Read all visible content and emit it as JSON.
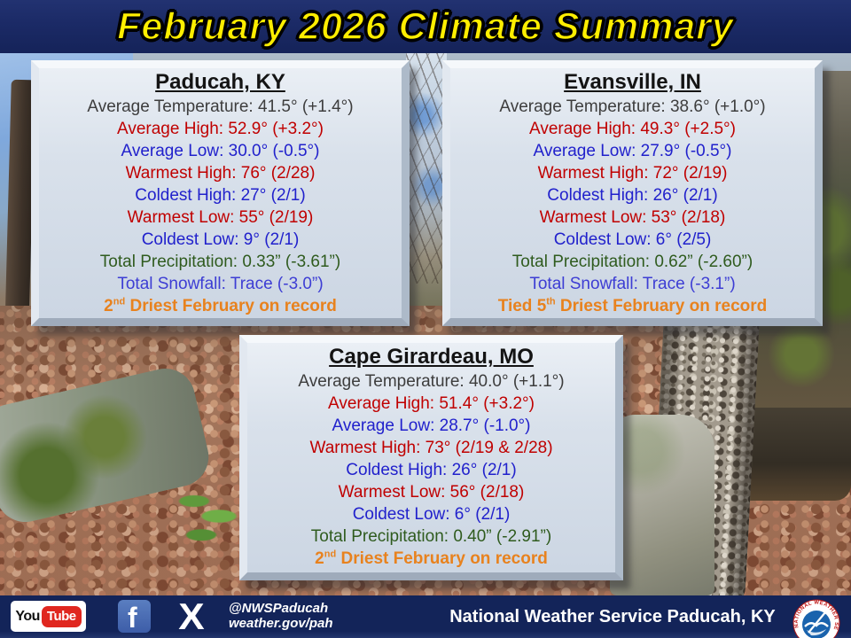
{
  "title": "February 2026 Climate Summary",
  "colors": {
    "black": "#3d3d3d",
    "red": "#c00000",
    "blue": "#2121cc",
    "green": "#2f5b1e",
    "snow": "#3d3dd4",
    "orange": "#e8821e"
  },
  "panels": [
    {
      "name": "Paducah, KY",
      "lines": [
        {
          "text": "Average Temperature: 41.5° (+1.4°)",
          "color": "black"
        },
        {
          "text": "Average High: 52.9° (+3.2°)",
          "color": "red"
        },
        {
          "text": "Average Low: 30.0° (-0.5°)",
          "color": "blue"
        },
        {
          "text": "Warmest High: 76° (2/28)",
          "color": "red"
        },
        {
          "text": "Coldest High: 27° (2/1)",
          "color": "blue"
        },
        {
          "text": "Warmest Low: 55° (2/19)",
          "color": "red"
        },
        {
          "text": "Coldest Low: 9° (2/1)",
          "color": "blue"
        },
        {
          "text": "Total Precipitation: 0.33” (-3.61”)",
          "color": "green"
        },
        {
          "text": "Total Snowfall: Trace (-3.0”)",
          "color": "snow"
        }
      ],
      "record": {
        "prefix": "",
        "number": "2",
        "ordinal": "nd",
        "rest": " Driest February on record"
      }
    },
    {
      "name": "Evansville, IN",
      "lines": [
        {
          "text": "Average Temperature: 38.6° (+1.0°)",
          "color": "black"
        },
        {
          "text": "Average High: 49.3° (+2.5°)",
          "color": "red"
        },
        {
          "text": "Average Low: 27.9° (-0.5°)",
          "color": "blue"
        },
        {
          "text": "Warmest High: 72° (2/19)",
          "color": "red"
        },
        {
          "text": "Coldest High: 26° (2/1)",
          "color": "blue"
        },
        {
          "text": "Warmest Low: 53° (2/18)",
          "color": "red"
        },
        {
          "text": "Coldest Low: 6° (2/5)",
          "color": "blue"
        },
        {
          "text": "Total Precipitation: 0.62” (-2.60”)",
          "color": "green"
        },
        {
          "text": "Total Snowfall: Trace (-3.1”)",
          "color": "snow"
        }
      ],
      "record": {
        "prefix": "Tied ",
        "number": "5",
        "ordinal": "th",
        "rest": " Driest February on record"
      }
    },
    {
      "name": "Cape Girardeau, MO",
      "lines": [
        {
          "text": "Average Temperature: 40.0° (+1.1°)",
          "color": "black"
        },
        {
          "text": "Average High: 51.4° (+3.2°)",
          "color": "red"
        },
        {
          "text": "Average Low: 28.7° (-1.0°)",
          "color": "blue"
        },
        {
          "text": "Warmest High: 73° (2/19 & 2/28)",
          "color": "red"
        },
        {
          "text": "Coldest High: 26° (2/1)",
          "color": "blue"
        },
        {
          "text": "Warmest Low: 56° (2/18)",
          "color": "red"
        },
        {
          "text": "Coldest Low: 6° (2/1)",
          "color": "blue"
        },
        {
          "text": "Total Precipitation: 0.40” (-2.91”)",
          "color": "green"
        }
      ],
      "record": {
        "prefix": "",
        "number": "2",
        "ordinal": "nd",
        "rest": " Driest February on record"
      }
    }
  ],
  "footer": {
    "youtube_text_1": "You",
    "youtube_text_2": "Tube",
    "facebook_letter": "f",
    "x_letter": "X",
    "handle": "@NWSPaducah",
    "url": "weather.gov/pah",
    "org": "National Weather Service Paducah, KY",
    "nws_ring_text": "NATIONAL WEATHER SERVICE"
  }
}
